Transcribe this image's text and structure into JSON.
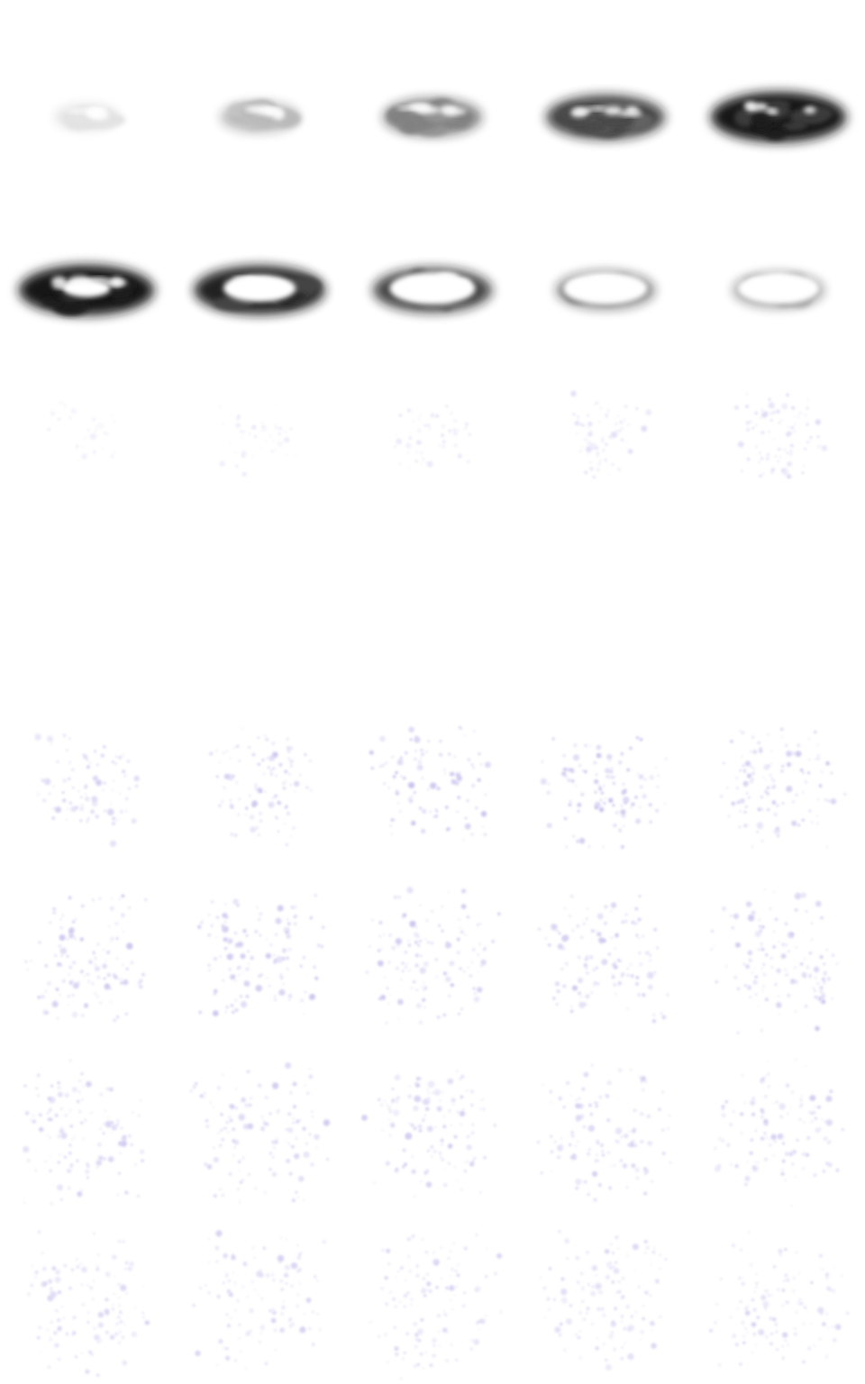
{
  "sprite_sheet": {
    "columns": 5,
    "rows": 7,
    "colors": {
      "background": "#ffffff",
      "smoke_dark": "#141414",
      "smoke_light": "#ffffff",
      "particle": "#9b93e0"
    },
    "smoke_frames": [
      {
        "intensity": 0.12,
        "hole": 0.0
      },
      {
        "intensity": 0.3,
        "hole": 0.0
      },
      {
        "intensity": 0.55,
        "hole": 0.0
      },
      {
        "intensity": 0.8,
        "hole": 0.0
      },
      {
        "intensity": 1.0,
        "hole": 0.0
      },
      {
        "intensity": 1.0,
        "hole": 0.35
      },
      {
        "intensity": 0.95,
        "hole": 0.55
      },
      {
        "intensity": 0.8,
        "hole": 0.72
      },
      {
        "intensity": 0.55,
        "hole": 0.85
      },
      {
        "intensity": 0.45,
        "hole": 0.9
      }
    ],
    "sparkle_frames": [
      {
        "density": 0.1,
        "spread": 0.3,
        "opacity": 0.15
      },
      {
        "density": 0.2,
        "spread": 0.35,
        "opacity": 0.2
      },
      {
        "density": 0.3,
        "spread": 0.4,
        "opacity": 0.25
      },
      {
        "density": 0.45,
        "spread": 0.45,
        "opacity": 0.3
      },
      {
        "density": 0.55,
        "spread": 0.5,
        "opacity": 0.35
      },
      {
        "density": 0.0,
        "spread": 0.5,
        "opacity": 0.0
      },
      {
        "density": 0.0,
        "spread": 0.5,
        "opacity": 0.0
      },
      {
        "density": 0.0,
        "spread": 0.5,
        "opacity": 0.0
      },
      {
        "density": 0.0,
        "spread": 0.5,
        "opacity": 0.0
      },
      {
        "density": 0.0,
        "spread": 0.5,
        "opacity": 0.0
      },
      {
        "density": 0.6,
        "spread": 0.7,
        "opacity": 0.45
      },
      {
        "density": 0.7,
        "spread": 0.75,
        "opacity": 0.5
      },
      {
        "density": 0.75,
        "spread": 0.8,
        "opacity": 0.55
      },
      {
        "density": 0.8,
        "spread": 0.85,
        "opacity": 0.55
      },
      {
        "density": 0.85,
        "spread": 0.9,
        "opacity": 0.55
      },
      {
        "density": 0.9,
        "spread": 0.95,
        "opacity": 0.5
      },
      {
        "density": 0.9,
        "spread": 0.95,
        "opacity": 0.5
      },
      {
        "density": 0.9,
        "spread": 1.0,
        "opacity": 0.5
      },
      {
        "density": 0.9,
        "spread": 1.0,
        "opacity": 0.5
      },
      {
        "density": 0.9,
        "spread": 1.0,
        "opacity": 0.5
      },
      {
        "density": 0.9,
        "spread": 1.0,
        "opacity": 0.45
      },
      {
        "density": 0.9,
        "spread": 1.0,
        "opacity": 0.45
      },
      {
        "density": 0.9,
        "spread": 1.0,
        "opacity": 0.45
      },
      {
        "density": 0.9,
        "spread": 1.0,
        "opacity": 0.45
      },
      {
        "density": 0.9,
        "spread": 1.0,
        "opacity": 0.45
      },
      {
        "density": 0.85,
        "spread": 1.0,
        "opacity": 0.4
      },
      {
        "density": 0.85,
        "spread": 1.0,
        "opacity": 0.4
      },
      {
        "density": 0.85,
        "spread": 1.0,
        "opacity": 0.4
      },
      {
        "density": 0.85,
        "spread": 1.0,
        "opacity": 0.4
      },
      {
        "density": 0.85,
        "spread": 1.0,
        "opacity": 0.4
      }
    ]
  }
}
